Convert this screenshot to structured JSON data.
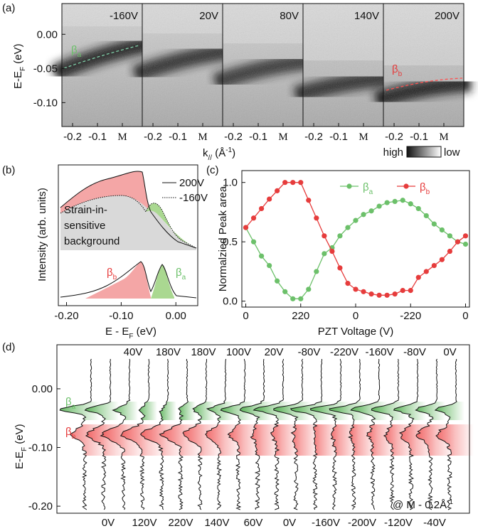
{
  "chart_data": [
    {
      "type": "image",
      "panel": "(a)",
      "ylabel": [
        {
          "t": "E-E"
        },
        {
          "sub": "F"
        },
        {
          "t": " (eV)"
        }
      ],
      "ylim": [
        -0.135,
        0.045
      ],
      "yticks": [
        {
          "value": 0,
          "label": "0.00"
        },
        {
          "value": -0.05,
          "label": "-0.05"
        },
        {
          "value": -0.1,
          "label": "-0.10"
        }
      ],
      "xlim": [
        -0.243,
        0.08
      ],
      "xticks": [
        {
          "value": -0.2,
          "label": "-0.2"
        },
        {
          "value": -0.1,
          "label": "-0.1"
        },
        {
          "value": 0,
          "label": "M"
        }
      ],
      "xlabel": [
        {
          "t": "k"
        },
        {
          "sub": "//"
        },
        {
          "t": " (Å"
        },
        {
          "sup": "-1"
        },
        {
          "t": ")"
        }
      ],
      "panels": [
        "-160V",
        "20V",
        "80V",
        "140V",
        "200V"
      ],
      "annotations": [
        [
          {
            "t": "β"
          },
          {
            "sub": "a"
          }
        ],
        [
          {
            "t": "β"
          },
          {
            "sub": "b"
          }
        ]
      ],
      "annotation_colors": [
        "#6cc06a",
        "#e63c3c"
      ],
      "colorbar": [
        "high",
        "low"
      ]
    },
    {
      "type": "spectrum",
      "panel": "(b)",
      "ylabel": "Intensity (arb. units)",
      "xlabel": [
        {
          "t": "E - E"
        },
        {
          "sub": "F"
        },
        {
          "t": " (eV)"
        }
      ],
      "xlim": [
        -0.215,
        0.04
      ],
      "xticks": [
        {
          "value": -0.2,
          "label": "-0.20"
        },
        {
          "value": -0.1,
          "label": "-0.10"
        },
        {
          "value": 0,
          "label": "0.00"
        }
      ],
      "legend": [
        "200V",
        "-160V"
      ],
      "annotations": [
        "Strain-in-",
        "sensitive",
        "background"
      ],
      "peaks": [
        [
          {
            "t": "β"
          },
          {
            "sub": "b"
          }
        ],
        [
          {
            "t": "β"
          },
          {
            "sub": "a"
          }
        ]
      ],
      "peak_colors": [
        "#e63c3c",
        "#6cc06a"
      ]
    },
    {
      "type": "line",
      "panel": "(c)",
      "ylabel": "Normalzied Peak area",
      "xlabel": "PZT Voltage (V)",
      "categories": [
        "0",
        null,
        null,
        null,
        null,
        null,
        null,
        "220",
        null,
        null,
        null,
        null,
        null,
        null,
        "0",
        null,
        null,
        null,
        null,
        null,
        null,
        "-220",
        null,
        null,
        null,
        null,
        null,
        null,
        "0"
      ],
      "ylim": [
        -0.05,
        1.1
      ],
      "yticks": [
        {
          "value": 0,
          "label": "0.0"
        },
        {
          "value": 0.5,
          "label": "0.5"
        },
        {
          "value": 1,
          "label": "1.0"
        }
      ],
      "legend_position": "top",
      "series": [
        {
          "name": [
            {
              "t": "β"
            },
            {
              "sub": "a"
            }
          ],
          "color": "#6cc06a",
          "values": [
            0.62,
            0.5,
            0.38,
            0.3,
            0.17,
            0.08,
            0.02,
            0.02,
            0.1,
            0.25,
            0.4,
            0.45,
            0.55,
            0.62,
            0.68,
            0.73,
            0.76,
            0.8,
            0.83,
            0.84,
            0.85,
            0.82,
            0.78,
            0.72,
            0.65,
            0.6,
            0.55,
            0.5,
            0.48
          ]
        },
        {
          "name": [
            {
              "t": "β"
            },
            {
              "sub": "b"
            }
          ],
          "color": "#e63c3c",
          "values": [
            0.62,
            0.7,
            0.78,
            0.86,
            0.93,
            1.0,
            1.0,
            1.0,
            0.85,
            0.7,
            0.55,
            0.42,
            0.28,
            0.15,
            0.1,
            0.08,
            0.06,
            0.05,
            0.05,
            0.06,
            0.09,
            0.09,
            0.2,
            0.25,
            0.3,
            0.35,
            0.42,
            0.5,
            0.55
          ]
        }
      ]
    },
    {
      "type": "waterfall",
      "panel": "(d)",
      "ylabel": [
        {
          "t": "E-E"
        },
        {
          "sub": "F"
        },
        {
          "t": " (eV)"
        }
      ],
      "ylim": [
        -0.212,
        0.075
      ],
      "yticks": [
        {
          "value": 0,
          "label": "0.00"
        },
        {
          "value": -0.1,
          "label": "-0.10"
        },
        {
          "value": -0.2,
          "label": "-0.20"
        }
      ],
      "top_labels": [
        "40V",
        "180V",
        "180V",
        "100V",
        "20V",
        "-80V",
        "-220V",
        "-160V",
        "-80V",
        "0V"
      ],
      "bottom_labels": [
        "0V",
        "120V",
        "220V",
        "140V",
        "60V",
        "0V",
        "-160V",
        "-200V",
        "-120V",
        "-40V"
      ],
      "annotations": [
        [
          {
            "t": "β"
          },
          {
            "sub": "a"
          }
        ],
        [
          {
            "t": "β"
          },
          {
            "sub": "b"
          }
        ]
      ],
      "annotation_colors": [
        "#6cc06a",
        "#e63c3c"
      ],
      "note": [
        {
          "t": "@ M - 0.2Å"
        },
        {
          "sup": "-1"
        }
      ]
    }
  ]
}
